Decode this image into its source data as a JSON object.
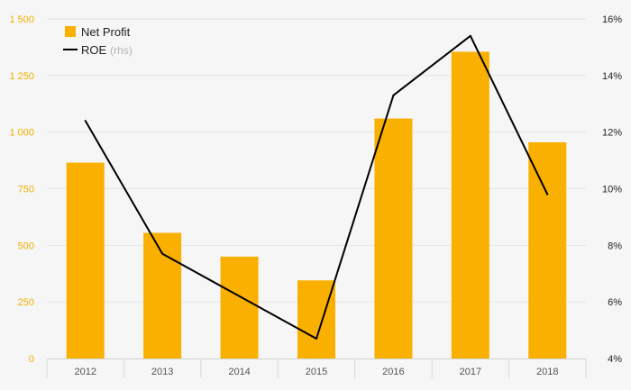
{
  "chart_data": {
    "type": "bar",
    "categories": [
      "2012",
      "2013",
      "2014",
      "2015",
      "2016",
      "2017",
      "2018"
    ],
    "series": [
      {
        "name": "Net Profit",
        "type": "bar",
        "axis": "left",
        "color": "#fab000",
        "values": [
          865,
          555,
          450,
          345,
          1060,
          1355,
          955
        ]
      },
      {
        "name": "ROE",
        "name_suffix": "(rhs)",
        "type": "line",
        "axis": "right",
        "color": "#000000",
        "values": [
          12.4,
          7.7,
          6.2,
          4.7,
          13.3,
          15.4,
          9.8
        ]
      }
    ],
    "y_left": {
      "lim": [
        0,
        1500
      ],
      "ticks": [
        0,
        250,
        500,
        750,
        1000,
        1250,
        1500
      ],
      "tick_labels": [
        "0",
        "250",
        "500",
        "750",
        "1 000",
        "1 250",
        "1 500"
      ],
      "color": "#f0b000"
    },
    "y_right": {
      "lim": [
        4,
        16
      ],
      "ticks": [
        4,
        6,
        8,
        10,
        12,
        14,
        16
      ],
      "tick_labels": [
        "4%",
        "6%",
        "8%",
        "10%",
        "12%",
        "14%",
        "16%"
      ]
    },
    "grid": true,
    "legend": "top-left"
  }
}
